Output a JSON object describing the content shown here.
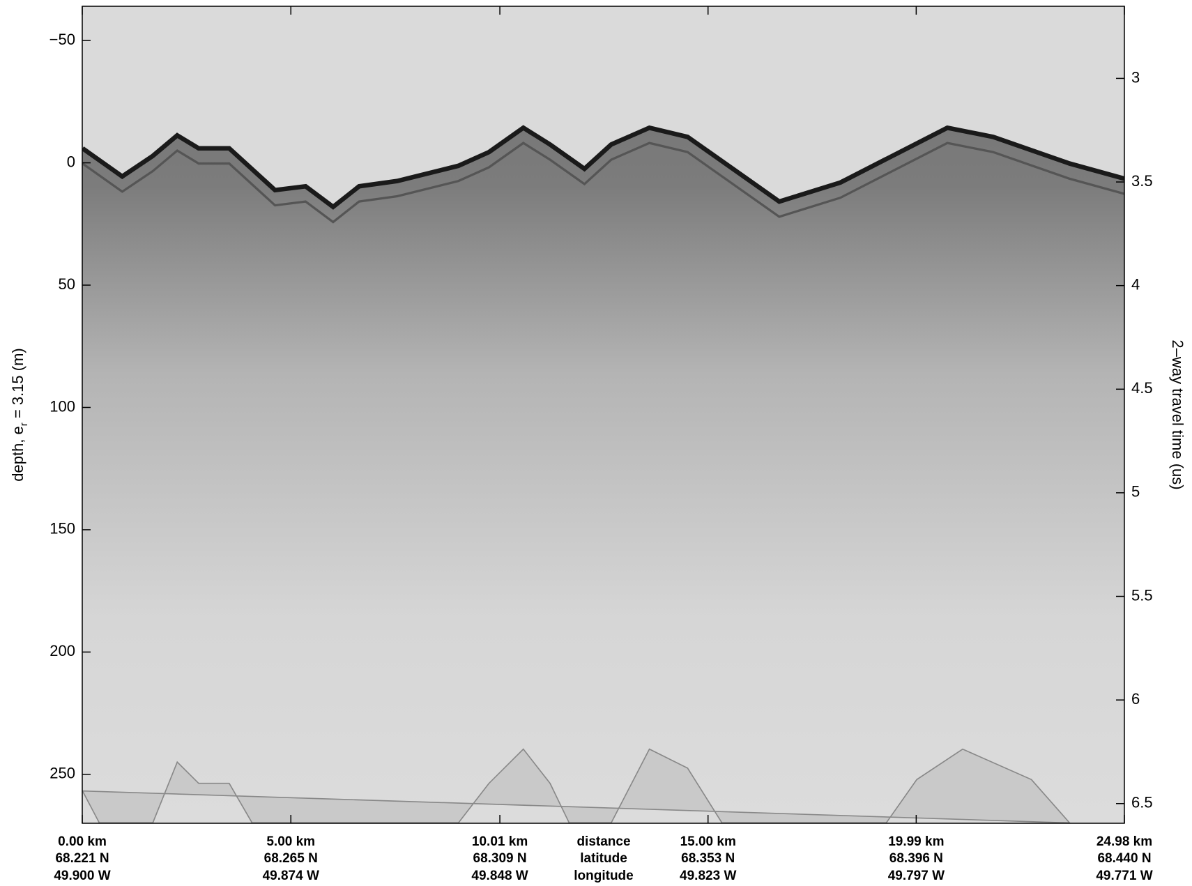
{
  "chart_data": {
    "type": "image",
    "ylabel": "depth, e",
    "ylabel_sub": "r",
    "ylabel_suffix": " = 3.15 (m)",
    "y2label": "2–way travel time (us)",
    "xlim": [
      0,
      24.98
    ],
    "xticks": [
      {
        "value": 0,
        "label": "0.00 km"
      },
      {
        "value": 5.0,
        "label": "5.00 km"
      },
      {
        "value": 10.01,
        "label": "10.01 km"
      },
      {
        "value": 15.0,
        "label": "15.00 km"
      },
      {
        "value": 19.99,
        "label": "19.99 km"
      },
      {
        "value": 24.98,
        "label": "24.98 km"
      }
    ],
    "latitudes": [
      "68.221 N",
      "68.265 N",
      "68.309 N",
      "68.353 N",
      "68.396 N",
      "68.440 N"
    ],
    "longitudes": [
      "49.900 W",
      "49.874 W",
      "49.848 W",
      "49.823 W",
      "49.797 W",
      "49.771 W"
    ],
    "row_labels": [
      "distance",
      "latitude",
      "longitude"
    ],
    "ylim": [
      -64,
      270
    ],
    "yticks": [
      {
        "value": -50,
        "label": "−50"
      },
      0,
      50,
      100,
      150,
      200,
      250
    ],
    "y2lim": [
      2.652,
      6.595
    ],
    "y2ticks": [
      3,
      3.5,
      4,
      4.5,
      5,
      5.5,
      6,
      6.5
    ]
  }
}
